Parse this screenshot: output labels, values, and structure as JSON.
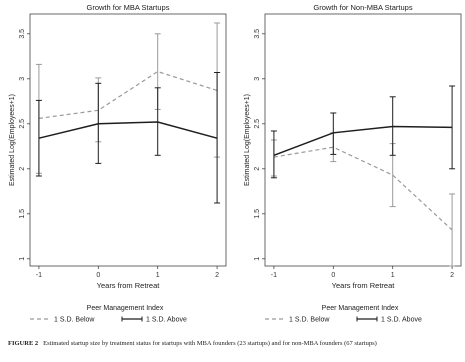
{
  "chart_data": [
    {
      "type": "line",
      "title": "Growth for MBA Startups",
      "xlabel": "Years from Retreat",
      "ylabel": "Estimated Log(Employees+1)",
      "x": [
        -1,
        0,
        1,
        2
      ],
      "xticks": [
        "-1",
        "0",
        "1",
        "2"
      ],
      "yticks": [
        "1",
        "1.5",
        "2",
        "2.5",
        "3",
        "3.5"
      ],
      "ylim": [
        0.92,
        3.72
      ],
      "grid": false,
      "legend_title": "Peer Management Index",
      "legend_position": "bottom",
      "series": [
        {
          "name": "1 S.D. Below",
          "style": "dashed",
          "color": "#9a9a9a",
          "values": [
            2.56,
            2.65,
            3.08,
            2.87
          ],
          "ci_low": [
            1.95,
            2.3,
            2.66,
            2.13
          ],
          "ci_high": [
            3.16,
            3.01,
            3.5,
            3.62
          ]
        },
        {
          "name": "1 S.D. Above",
          "style": "solid",
          "color": "#1e1e1e",
          "values": [
            2.34,
            2.5,
            2.52,
            2.34
          ],
          "ci_low": [
            1.92,
            2.06,
            2.15,
            1.62
          ],
          "ci_high": [
            2.76,
            2.95,
            2.9,
            3.07
          ]
        }
      ]
    },
    {
      "type": "line",
      "title": "Growth for Non-MBA Startups",
      "xlabel": "Years from Retreat",
      "ylabel": "Estimated Log(Employees+1)",
      "x": [
        -1,
        0,
        1,
        2
      ],
      "xticks": [
        "-1",
        "0",
        "1",
        "2"
      ],
      "yticks": [
        "1",
        "1.5",
        "2",
        "2.5",
        "3",
        "3.5"
      ],
      "ylim": [
        0.92,
        3.72
      ],
      "grid": false,
      "legend_title": "Peer Management Index",
      "legend_position": "bottom",
      "series": [
        {
          "name": "1 S.D. Below",
          "style": "dashed",
          "color": "#9a9a9a",
          "values": [
            2.13,
            2.24,
            1.93,
            1.32
          ],
          "ci_low": [
            1.92,
            2.08,
            1.58,
            0.92
          ],
          "ci_high": [
            2.32,
            2.4,
            2.28,
            1.72
          ]
        },
        {
          "name": "1 S.D. Above",
          "style": "solid",
          "color": "#1e1e1e",
          "values": [
            2.15,
            2.4,
            2.47,
            2.46
          ],
          "ci_low": [
            1.9,
            2.16,
            2.15,
            2.0
          ],
          "ci_high": [
            2.42,
            2.62,
            2.8,
            2.92
          ]
        }
      ]
    }
  ],
  "caption": {
    "label": "FIGURE 2",
    "text": "Estimated startup size by treatment status for startups with MBA founders (23 startups) and for non-MBA founders (67 startups)"
  }
}
